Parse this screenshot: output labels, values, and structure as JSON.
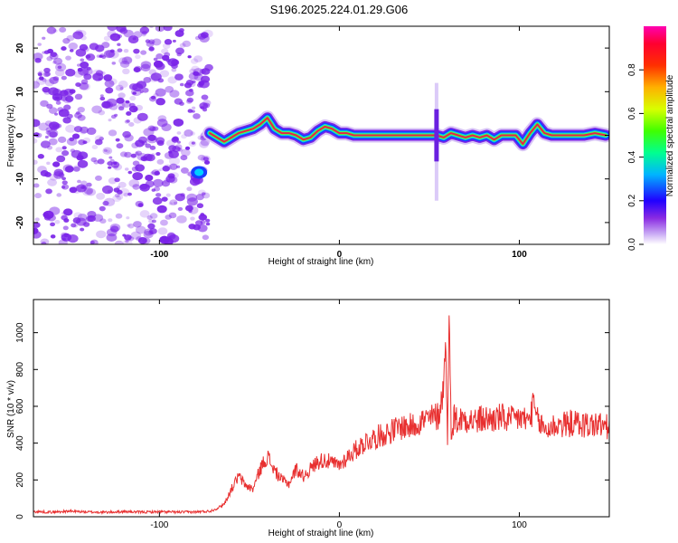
{
  "figure": {
    "title": "S196.2025.224.01.29.G06"
  },
  "colors": {
    "snr_line": "#e83030",
    "spectral_trace": "#e8214a",
    "noise_blob": "#7a22e8",
    "axis": "#000000"
  },
  "chart_data": [
    {
      "type": "heatmap",
      "title": "S196.2025.224.01.29.G06",
      "xlabel": "Height of straight line (km)",
      "ylabel": "Frequency (Hz)",
      "xlim": [
        -170,
        150
      ],
      "ylim": [
        -25,
        25
      ],
      "xticks": [
        -100,
        0,
        100
      ],
      "yticks": [
        -20,
        -10,
        0,
        10,
        20
      ],
      "grid": false,
      "colorbar": {
        "label": "Normalized spectral amplitude",
        "range": [
          0,
          1
        ],
        "ticks": [
          0.0,
          0.2,
          0.4,
          0.6,
          0.8
        ],
        "tick_labels": [
          "0.0",
          "0.2",
          "0.4",
          "0.6",
          "0.8"
        ],
        "colormap": "gist_rainbow"
      },
      "noise_region": {
        "x_range": [
          -170,
          -72
        ],
        "y_range": [
          -25,
          25
        ]
      },
      "trace": {
        "x": [
          -72,
          -68,
          -64,
          -60,
          -56,
          -52,
          -48,
          -44,
          -40,
          -36,
          -32,
          -28,
          -24,
          -20,
          -16,
          -12,
          -8,
          -4,
          0,
          4,
          8,
          12,
          16,
          20,
          24,
          30,
          36,
          42,
          46,
          50,
          54,
          58,
          62,
          66,
          70,
          74,
          78,
          82,
          86,
          90,
          94,
          98,
          102,
          106,
          110,
          114,
          118,
          124,
          130,
          136,
          142,
          148
        ],
        "y": [
          0.5,
          -0.5,
          -1.5,
          -0.5,
          0.5,
          1.0,
          1.5,
          2.5,
          4.0,
          1.5,
          0.5,
          0.5,
          0.0,
          -1.0,
          -0.5,
          1.0,
          2.0,
          1.5,
          0.5,
          0.5,
          0.0,
          0.0,
          0.0,
          0.0,
          0.0,
          0.0,
          0.0,
          0.0,
          0.0,
          0.0,
          0.0,
          -0.5,
          0.5,
          0.0,
          -0.5,
          0.0,
          -0.5,
          0.0,
          -1.0,
          0.0,
          0.0,
          0.0,
          -2.0,
          0.5,
          2.5,
          0.5,
          0.0,
          0.0,
          0.0,
          0.0,
          0.5,
          0.0
        ]
      },
      "extra_features": [
        {
          "x": -78,
          "y": -8.5,
          "label": "low-frequency blob"
        },
        {
          "x": 54,
          "y": 10,
          "label": "vertical streak",
          "y_range": [
            -15,
            12
          ]
        }
      ]
    },
    {
      "type": "line",
      "xlabel": "Height of straight line (km)",
      "ylabel": "SNR (10 * v/v)",
      "xlim": [
        -170,
        150
      ],
      "ylim": [
        0,
        1180
      ],
      "xticks": [
        -100,
        0,
        100
      ],
      "yticks": [
        0,
        200,
        400,
        600,
        800,
        1000
      ],
      "grid": false,
      "series": [
        {
          "name": "SNR",
          "x": [
            -170,
            -160,
            -150,
            -140,
            -130,
            -120,
            -110,
            -100,
            -90,
            -80,
            -72,
            -68,
            -64,
            -60,
            -56,
            -52,
            -48,
            -44,
            -40,
            -36,
            -32,
            -28,
            -24,
            -20,
            -16,
            -12,
            -8,
            -4,
            0,
            5,
            10,
            15,
            20,
            25,
            30,
            35,
            40,
            45,
            50,
            55,
            58,
            59,
            60,
            61,
            62,
            64,
            66,
            70,
            75,
            80,
            85,
            90,
            95,
            100,
            105,
            108,
            110,
            115,
            120,
            125,
            130,
            135,
            140,
            145,
            150
          ],
          "y": [
            28,
            25,
            30,
            26,
            24,
            28,
            25,
            27,
            25,
            26,
            30,
            45,
            70,
            150,
            220,
            170,
            150,
            260,
            330,
            250,
            200,
            180,
            260,
            220,
            260,
            300,
            310,
            290,
            280,
            330,
            370,
            410,
            430,
            450,
            470,
            490,
            490,
            520,
            530,
            550,
            700,
            1020,
            400,
            1100,
            500,
            540,
            520,
            540,
            520,
            530,
            530,
            540,
            520,
            540,
            520,
            600,
            520,
            470,
            500,
            500,
            510,
            500,
            500,
            500,
            480
          ]
        }
      ]
    }
  ]
}
